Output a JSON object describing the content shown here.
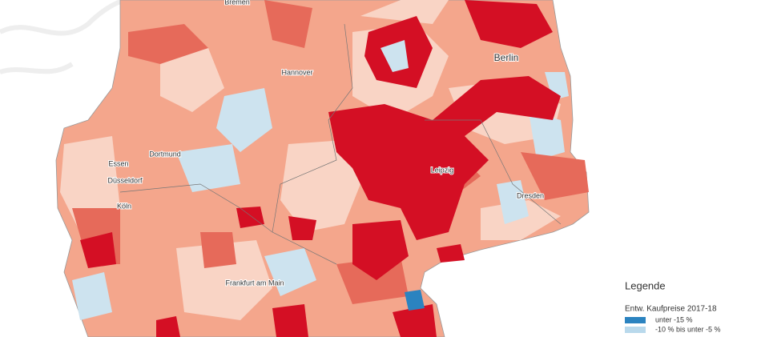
{
  "cities": [
    {
      "label": "Bremen"
    },
    {
      "label": "Hannover"
    },
    {
      "label": "Berlin"
    },
    {
      "label": "Dortmund"
    },
    {
      "label": "Essen"
    },
    {
      "label": "Düsseldorf"
    },
    {
      "label": "Köln"
    },
    {
      "label": "Leipzig"
    },
    {
      "label": "Dresden"
    },
    {
      "label": "Frankfurt am Main"
    }
  ],
  "legend": {
    "title": "Legende",
    "subtitle": "Entw. Kaufpreise 2017-18",
    "items": [
      {
        "label": "unter -15 %",
        "color": "#2b83c0"
      },
      {
        "label": "-10 % bis unter -5 %",
        "color": "#b9d9ec"
      }
    ]
  }
}
